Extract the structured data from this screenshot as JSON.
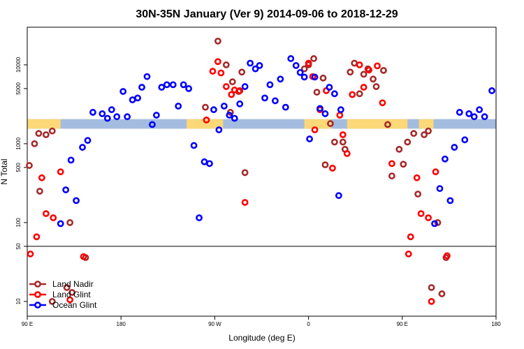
{
  "chart_data": {
    "type": "scatter",
    "title": "30N-35N January (Ver 9)   2014-09-06 to 2018-12-29",
    "xlabel": "Longitude (deg E)",
    "ylabel": "N Total",
    "x_scale": "linear",
    "y_scale": "log",
    "xlim": [
      90,
      540
    ],
    "ylim": [
      6.5,
      30000
    ],
    "x_ticks": [
      {
        "value": 90,
        "label": "90 E"
      },
      {
        "value": 180,
        "label": "180"
      },
      {
        "value": 270,
        "label": "90 W"
      },
      {
        "value": 360,
        "label": "0"
      },
      {
        "value": 450,
        "label": "90 E"
      },
      {
        "value": 540,
        "label": "180"
      }
    ],
    "y_ticks": [
      {
        "value": 10,
        "label": "10"
      },
      {
        "value": 50,
        "label": "50"
      },
      {
        "value": 100,
        "label": "100"
      },
      {
        "value": 500,
        "label": "500"
      },
      {
        "value": 1000,
        "label": "1000"
      },
      {
        "value": 5000,
        "label": "5000"
      },
      {
        "value": 10000,
        "label": "10000"
      }
    ],
    "reference_line": {
      "y": 50
    },
    "surface_band": {
      "y_range": [
        1550,
        2050
      ],
      "colors": {
        "land": "#fcd878",
        "ocean": "#a4bcdf"
      },
      "land_segments": [
        [
          90,
          122
        ],
        [
          243,
          278
        ],
        [
          356,
          382
        ],
        [
          397,
          455
        ],
        [
          466,
          480
        ]
      ]
    },
    "legend": {
      "position": "bottom-left",
      "entries": [
        "Land Nadir",
        "Land Glint",
        "Ocean Glint"
      ]
    },
    "series": [
      {
        "name": "Land Nadir",
        "color": "#a52a2a",
        "points": [
          {
            "x": 92,
            "y": 530
          },
          {
            "x": 97,
            "y": 1000
          },
          {
            "x": 101,
            "y": 1350
          },
          {
            "x": 108,
            "y": 1300
          },
          {
            "x": 114,
            "y": 1450
          },
          {
            "x": 128,
            "y": 15
          },
          {
            "x": 146,
            "y": 36
          },
          {
            "x": 102,
            "y": 250
          },
          {
            "x": 131,
            "y": 100
          },
          {
            "x": 114,
            "y": 10
          },
          {
            "x": 133,
            "y": 13
          },
          {
            "x": 261,
            "y": 2900
          },
          {
            "x": 273,
            "y": 20000
          },
          {
            "x": 281,
            "y": 10000
          },
          {
            "x": 287,
            "y": 6100
          },
          {
            "x": 293,
            "y": 4600
          },
          {
            "x": 296,
            "y": 8100
          },
          {
            "x": 285,
            "y": 2500
          },
          {
            "x": 299,
            "y": 430
          },
          {
            "x": 356,
            "y": 8900
          },
          {
            "x": 360,
            "y": 10000
          },
          {
            "x": 365,
            "y": 12000
          },
          {
            "x": 368,
            "y": 4500
          },
          {
            "x": 374,
            "y": 6800
          },
          {
            "x": 376,
            "y": 540
          },
          {
            "x": 381,
            "y": 1800
          },
          {
            "x": 385,
            "y": 1050
          },
          {
            "x": 393,
            "y": 1050
          },
          {
            "x": 395,
            "y": 850
          },
          {
            "x": 400,
            "y": 8100
          },
          {
            "x": 404,
            "y": 10500
          },
          {
            "x": 409,
            "y": 4300
          },
          {
            "x": 413,
            "y": 7600
          },
          {
            "x": 417,
            "y": 8900
          },
          {
            "x": 422,
            "y": 6600
          },
          {
            "x": 425,
            "y": 5300
          },
          {
            "x": 432,
            "y": 8500
          },
          {
            "x": 436,
            "y": 1750
          },
          {
            "x": 440,
            "y": 390
          },
          {
            "x": 447,
            "y": 850
          },
          {
            "x": 451,
            "y": 550
          },
          {
            "x": 455,
            "y": 1050
          },
          {
            "x": 461,
            "y": 1350
          },
          {
            "x": 465,
            "y": 230
          },
          {
            "x": 471,
            "y": 1300
          },
          {
            "x": 475,
            "y": 1450
          },
          {
            "x": 478,
            "y": 15
          },
          {
            "x": 484,
            "y": 100
          },
          {
            "x": 492,
            "y": 36
          },
          {
            "x": 488,
            "y": 12.5
          }
        ]
      },
      {
        "name": "Land Glint",
        "color": "#ff0000",
        "points": [
          {
            "x": 93,
            "y": 40
          },
          {
            "x": 99,
            "y": 66
          },
          {
            "x": 104,
            "y": 370
          },
          {
            "x": 108,
            "y": 130
          },
          {
            "x": 115,
            "y": 115
          },
          {
            "x": 122,
            "y": 440
          },
          {
            "x": 131,
            "y": 10.5
          },
          {
            "x": 144,
            "y": 37
          },
          {
            "x": 262,
            "y": 2000
          },
          {
            "x": 268,
            "y": 8300
          },
          {
            "x": 273,
            "y": 11000
          },
          {
            "x": 276,
            "y": 7900
          },
          {
            "x": 281,
            "y": 5300
          },
          {
            "x": 286,
            "y": 4200
          },
          {
            "x": 289,
            "y": 4800
          },
          {
            "x": 294,
            "y": 4700
          },
          {
            "x": 299,
            "y": 180
          },
          {
            "x": 360,
            "y": 10500
          },
          {
            "x": 364,
            "y": 7100
          },
          {
            "x": 366,
            "y": 1500
          },
          {
            "x": 371,
            "y": 2700
          },
          {
            "x": 377,
            "y": 4700
          },
          {
            "x": 383,
            "y": 490
          },
          {
            "x": 390,
            "y": 2300
          },
          {
            "x": 393,
            "y": 1300
          },
          {
            "x": 397,
            "y": 750
          },
          {
            "x": 402,
            "y": 4200
          },
          {
            "x": 409,
            "y": 10000
          },
          {
            "x": 413,
            "y": 5200
          },
          {
            "x": 418,
            "y": 8600
          },
          {
            "x": 426,
            "y": 9700
          },
          {
            "x": 431,
            "y": 3300
          },
          {
            "x": 440,
            "y": 560
          },
          {
            "x": 456,
            "y": 40
          },
          {
            "x": 458,
            "y": 66
          },
          {
            "x": 464,
            "y": 370
          },
          {
            "x": 468,
            "y": 130
          },
          {
            "x": 475,
            "y": 115
          },
          {
            "x": 482,
            "y": 440
          },
          {
            "x": 478,
            "y": 10
          },
          {
            "x": 493,
            "y": 38
          }
        ]
      },
      {
        "name": "Ocean Glint",
        "color": "#0000ff",
        "points": [
          {
            "x": 122,
            "y": 97
          },
          {
            "x": 127,
            "y": 260
          },
          {
            "x": 132,
            "y": 620
          },
          {
            "x": 137,
            "y": 190
          },
          {
            "x": 143,
            "y": 900
          },
          {
            "x": 148,
            "y": 1100
          },
          {
            "x": 153,
            "y": 2500
          },
          {
            "x": 162,
            "y": 2400
          },
          {
            "x": 167,
            "y": 2100
          },
          {
            "x": 171,
            "y": 2700
          },
          {
            "x": 176,
            "y": 2200
          },
          {
            "x": 182,
            "y": 4600
          },
          {
            "x": 186,
            "y": 2200
          },
          {
            "x": 191,
            "y": 3600
          },
          {
            "x": 196,
            "y": 3800
          },
          {
            "x": 200,
            "y": 5200
          },
          {
            "x": 205,
            "y": 7100
          },
          {
            "x": 210,
            "y": 1750
          },
          {
            "x": 214,
            "y": 2300
          },
          {
            "x": 219,
            "y": 5200
          },
          {
            "x": 224,
            "y": 5600
          },
          {
            "x": 230,
            "y": 5600
          },
          {
            "x": 235,
            "y": 3000
          },
          {
            "x": 240,
            "y": 5600
          },
          {
            "x": 245,
            "y": 5000
          },
          {
            "x": 250,
            "y": 950
          },
          {
            "x": 255,
            "y": 115
          },
          {
            "x": 260,
            "y": 590
          },
          {
            "x": 265,
            "y": 560
          },
          {
            "x": 269,
            "y": 2700
          },
          {
            "x": 274,
            "y": 1500
          },
          {
            "x": 279,
            "y": 3000
          },
          {
            "x": 284,
            "y": 2300
          },
          {
            "x": 289,
            "y": 2100
          },
          {
            "x": 294,
            "y": 3200
          },
          {
            "x": 299,
            "y": 5300
          },
          {
            "x": 304,
            "y": 10500
          },
          {
            "x": 309,
            "y": 8900
          },
          {
            "x": 313,
            "y": 9800
          },
          {
            "x": 318,
            "y": 3800
          },
          {
            "x": 323,
            "y": 5600
          },
          {
            "x": 328,
            "y": 3500
          },
          {
            "x": 333,
            "y": 6600
          },
          {
            "x": 338,
            "y": 2900
          },
          {
            "x": 343,
            "y": 12000
          },
          {
            "x": 348,
            "y": 9800
          },
          {
            "x": 352,
            "y": 8000
          },
          {
            "x": 356,
            "y": 7000
          },
          {
            "x": 361,
            "y": 1150
          },
          {
            "x": 366,
            "y": 7000
          },
          {
            "x": 371,
            "y": 2800
          },
          {
            "x": 376,
            "y": 2400
          },
          {
            "x": 380,
            "y": 5200
          },
          {
            "x": 385,
            "y": 4300
          },
          {
            "x": 389,
            "y": 220
          },
          {
            "x": 391,
            "y": 2700
          },
          {
            "x": 481,
            "y": 97
          },
          {
            "x": 486,
            "y": 270
          },
          {
            "x": 491,
            "y": 640
          },
          {
            "x": 496,
            "y": 190
          },
          {
            "x": 500,
            "y": 900
          },
          {
            "x": 505,
            "y": 2500
          },
          {
            "x": 510,
            "y": 1120
          },
          {
            "x": 514,
            "y": 2400
          },
          {
            "x": 519,
            "y": 2200
          },
          {
            "x": 524,
            "y": 2700
          },
          {
            "x": 529,
            "y": 2200
          },
          {
            "x": 536,
            "y": 4700
          }
        ]
      }
    ]
  }
}
